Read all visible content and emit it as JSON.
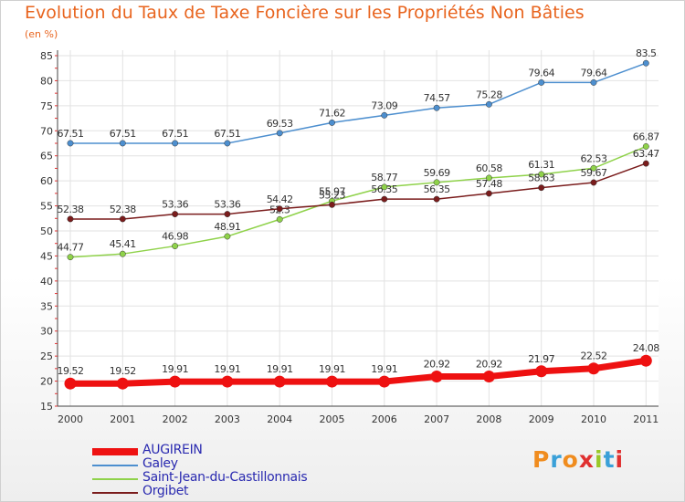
{
  "title": "Evolution du Taux de Taxe Foncière sur les Propriétés Non Bâties",
  "unit": "(en %)",
  "logo": {
    "text": "Proxiti",
    "colors": [
      "#f08c1e",
      "#3aa0d8",
      "#f08c1e",
      "#e03030",
      "#9ac828",
      "#3aa0d8",
      "#e03030"
    ]
  },
  "chart_data": {
    "type": "line",
    "x": [
      "2000",
      "2001",
      "2002",
      "2003",
      "2004",
      "2005",
      "2006",
      "2007",
      "2008",
      "2009",
      "2010",
      "2011"
    ],
    "ylim": [
      15,
      85
    ],
    "yticks": [
      15,
      20,
      25,
      30,
      35,
      40,
      45,
      50,
      55,
      60,
      65,
      70,
      75,
      80,
      85
    ],
    "grid": true,
    "legend": "bottom-left",
    "series": [
      {
        "name": "AUGIREIN",
        "color": "#ee1111",
        "values": [
          19.52,
          19.52,
          19.91,
          19.91,
          19.91,
          19.91,
          19.91,
          20.92,
          20.92,
          21.97,
          22.52,
          24.08
        ],
        "labels": [
          "19.52",
          "19.52",
          "19.91",
          "19.91",
          "19.91",
          "19.91",
          "19.91",
          "20.92",
          "20.92",
          "21.97",
          "22.52",
          "24.08"
        ]
      },
      {
        "name": "Galey",
        "color": "#4d8fcf",
        "values": [
          67.51,
          67.51,
          67.51,
          67.51,
          69.53,
          71.62,
          73.09,
          74.57,
          75.28,
          79.64,
          79.64,
          83.5
        ],
        "labels": [
          "67.51",
          "67.51",
          "67.51",
          "67.51",
          "69.53",
          "71.62",
          "73.09",
          "74.57",
          "75.28",
          "79.64",
          "79.64",
          "83.5"
        ]
      },
      {
        "name": "Saint-Jean-du-Castillonnais",
        "color": "#8fd24a",
        "values": [
          44.77,
          45.41,
          46.98,
          48.91,
          52.3,
          55.97,
          58.77,
          59.69,
          60.58,
          61.31,
          62.53,
          66.87
        ],
        "labels": [
          "44.77",
          "45.41",
          "46.98",
          "48.91",
          "52.3",
          "55.97",
          "58.77",
          "59.69",
          "60.58",
          "61.31",
          "62.53",
          "66.87"
        ]
      },
      {
        "name": "Orgibet",
        "color": "#7a1c1c",
        "values": [
          52.38,
          52.38,
          53.36,
          53.36,
          54.42,
          55.23,
          56.35,
          56.35,
          57.48,
          58.63,
          59.67,
          63.47
        ],
        "labels": [
          "52.38",
          "52.38",
          "53.36",
          "53.36",
          "54.42",
          "55.23",
          "56.35",
          "56.35",
          "57.48",
          "58.63",
          "59.67",
          "63.47"
        ]
      }
    ]
  }
}
